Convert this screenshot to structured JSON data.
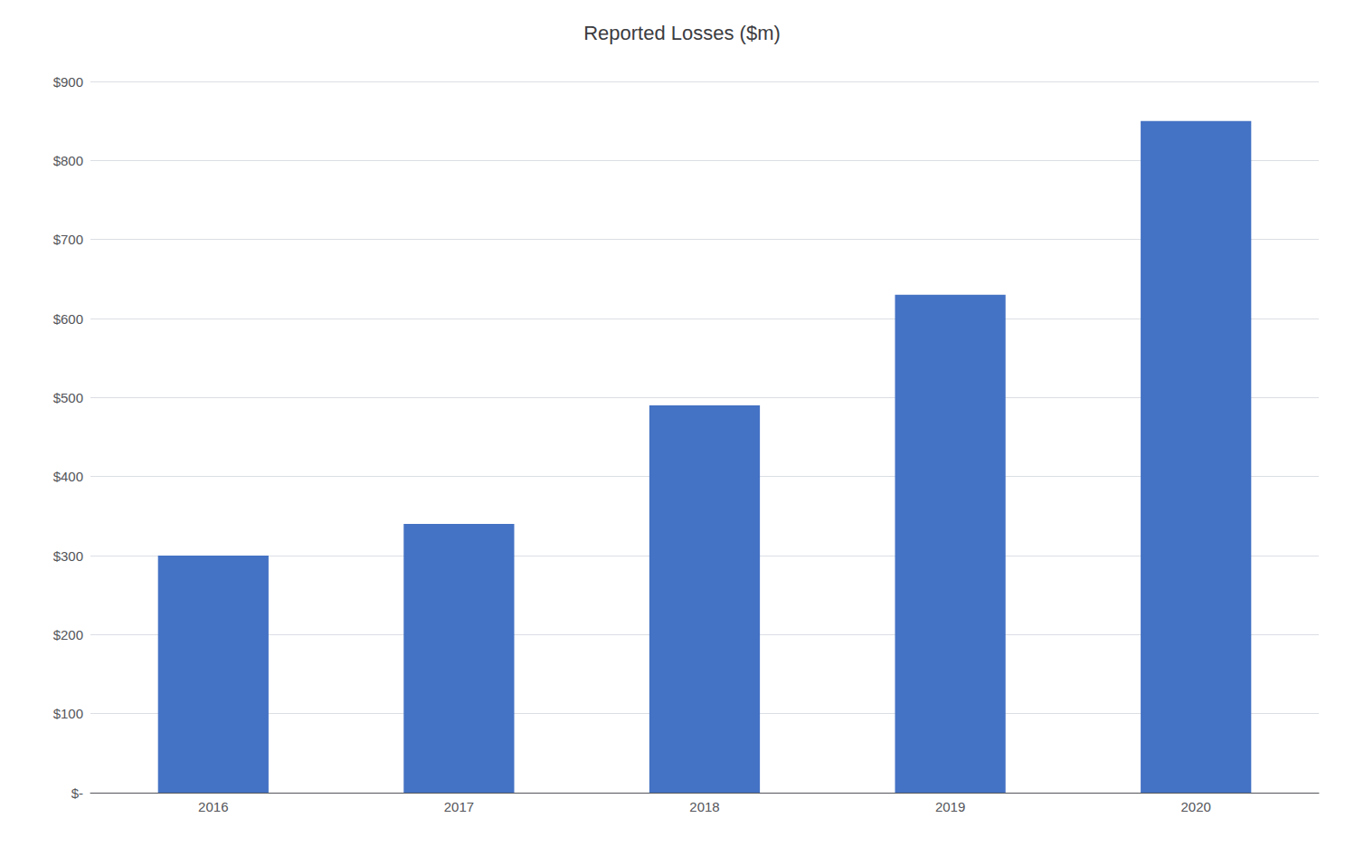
{
  "chart_data": {
    "type": "bar",
    "title": "Reported Losses ($m)",
    "categories": [
      "2016",
      "2017",
      "2018",
      "2019",
      "2020"
    ],
    "values": [
      300,
      340,
      490,
      630,
      850
    ],
    "color": "#4472C4",
    "ylim": [
      0,
      900
    ],
    "yticks": [
      {
        "value": 0,
        "label": "$-"
      },
      {
        "value": 100,
        "label": "$100"
      },
      {
        "value": 200,
        "label": "$200"
      },
      {
        "value": 300,
        "label": "$300"
      },
      {
        "value": 400,
        "label": "$400"
      },
      {
        "value": 500,
        "label": "$500"
      },
      {
        "value": 600,
        "label": "$600"
      },
      {
        "value": 700,
        "label": "$700"
      },
      {
        "value": 800,
        "label": "$800"
      },
      {
        "value": 900,
        "label": "$900"
      }
    ],
    "grid": true
  }
}
